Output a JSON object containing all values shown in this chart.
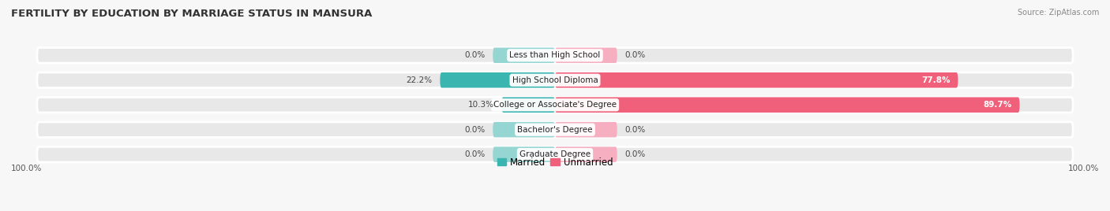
{
  "title": "FERTILITY BY EDUCATION BY MARRIAGE STATUS IN MANSURA",
  "source": "Source: ZipAtlas.com",
  "categories": [
    "Less than High School",
    "High School Diploma",
    "College or Associate's Degree",
    "Bachelor's Degree",
    "Graduate Degree"
  ],
  "married_pct": [
    0.0,
    22.2,
    10.3,
    0.0,
    0.0
  ],
  "unmarried_pct": [
    0.0,
    77.8,
    89.7,
    0.0,
    0.0
  ],
  "married_color": "#3ab5b0",
  "unmarried_color": "#f0607a",
  "married_light_color": "#95d5d2",
  "unmarried_light_color": "#f5afc0",
  "bar_bg_color": "#e8e8e8",
  "fig_bg_color": "#f7f7f7",
  "bar_height": 0.62,
  "stub_val": 12.0,
  "max_val": 100.0,
  "title_fontsize": 9.5,
  "label_fontsize": 7.5,
  "pct_fontsize": 7.5,
  "legend_fontsize": 8.5,
  "left_axis_label": "100.0%",
  "right_axis_label": "100.0%"
}
